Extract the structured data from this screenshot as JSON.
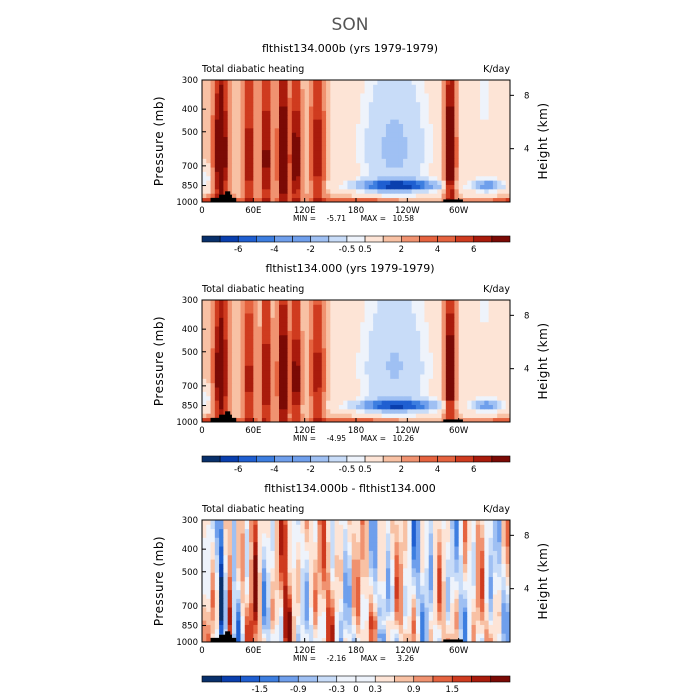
{
  "page_title": "SON",
  "colors": {
    "levels": [
      "#08306b",
      "#0a3fae",
      "#1f5fd1",
      "#3d7ee0",
      "#6f9fec",
      "#9fc0f3",
      "#c8dcf8",
      "#eef3fb",
      "#fde4d6",
      "#f8c1a4",
      "#f09270",
      "#e5633f",
      "#cf3b1f",
      "#a91b0c",
      "#7b0a05"
    ],
    "land": "#000000"
  },
  "chart_data": [
    {
      "type": "heatmap",
      "title": "flthist134.000b (yrs 1979-1979)",
      "left_label": "Total diabatic heating",
      "units": "K/day",
      "ylabel": "Pressure (mb)",
      "ylabel_right": "Height (km)",
      "x_ticks": [
        "0",
        "60E",
        "120E",
        "180",
        "120W",
        "60W"
      ],
      "x_tick_lon": [
        0,
        60,
        120,
        180,
        240,
        300
      ],
      "xlim": [
        0,
        360
      ],
      "y_ticks": [
        "300",
        "400",
        "500",
        "700",
        "850",
        "1000"
      ],
      "y_tick_p": [
        300,
        400,
        500,
        700,
        850,
        1000
      ],
      "ylim": [
        1000,
        300
      ],
      "right_ticks": [
        "8",
        "4"
      ],
      "right_tick_km": [
        8,
        4
      ],
      "min_label": "MIN =",
      "min_value": "-5.71",
      "max_label": "MAX =",
      "max_value": "10.58",
      "colorbar_levels": [
        -7,
        -6,
        -5,
        -4,
        -3,
        -2,
        -1,
        -0.5,
        0.5,
        1,
        2,
        3,
        4,
        5,
        6,
        7
      ],
      "colorbar_labels": [
        "-6",
        "-4",
        "-2",
        "-0.5",
        "0.5",
        "2",
        "4",
        "6"
      ],
      "colorbar_label_idx": [
        1,
        3,
        5,
        7,
        8,
        10,
        12,
        14
      ],
      "scale": 1.0,
      "noise": 0.0
    },
    {
      "type": "heatmap",
      "title": "flthist134.000 (yrs 1979-1979)",
      "left_label": "Total diabatic heating",
      "units": "K/day",
      "ylabel": "Pressure (mb)",
      "ylabel_right": "Height (km)",
      "x_ticks": [
        "0",
        "60E",
        "120E",
        "180",
        "120W",
        "60W"
      ],
      "x_tick_lon": [
        0,
        60,
        120,
        180,
        240,
        300
      ],
      "xlim": [
        0,
        360
      ],
      "y_ticks": [
        "300",
        "400",
        "500",
        "700",
        "850",
        "1000"
      ],
      "y_tick_p": [
        300,
        400,
        500,
        700,
        850,
        1000
      ],
      "ylim": [
        1000,
        300
      ],
      "right_ticks": [
        "8",
        "4"
      ],
      "right_tick_km": [
        8,
        4
      ],
      "min_label": "MIN =",
      "min_value": "-4.95",
      "max_label": "MAX =",
      "max_value": "10.26",
      "colorbar_levels": [
        -7,
        -6,
        -5,
        -4,
        -3,
        -2,
        -1,
        -0.5,
        0.5,
        1,
        2,
        3,
        4,
        5,
        6,
        7
      ],
      "colorbar_labels": [
        "-6",
        "-4",
        "-2",
        "-0.5",
        "0.5",
        "2",
        "4",
        "6"
      ],
      "colorbar_label_idx": [
        1,
        3,
        5,
        7,
        8,
        10,
        12,
        14
      ],
      "scale": 0.92,
      "noise": 0.0
    },
    {
      "type": "heatmap",
      "title": "flthist134.000b - flthist134.000",
      "left_label": "Total diabatic heating",
      "units": "K/day",
      "ylabel": "Pressure (mb)",
      "ylabel_right": "Height (km)",
      "x_ticks": [
        "0",
        "60E",
        "120E",
        "180",
        "120W",
        "60W"
      ],
      "x_tick_lon": [
        0,
        60,
        120,
        180,
        240,
        300
      ],
      "xlim": [
        0,
        360
      ],
      "y_ticks": [
        "300",
        "400",
        "500",
        "700",
        "850",
        "1000"
      ],
      "y_tick_p": [
        300,
        400,
        500,
        700,
        850,
        1000
      ],
      "ylim": [
        1000,
        300
      ],
      "right_ticks": [
        "8",
        "4"
      ],
      "right_tick_km": [
        8,
        4
      ],
      "min_label": "MIN =",
      "min_value": "-2.16",
      "max_label": "MAX =",
      "max_value": "3.26",
      "colorbar_levels": [
        -2.1,
        -1.8,
        -1.5,
        -1.2,
        -0.9,
        -0.6,
        -0.3,
        0,
        0.3,
        0.6,
        0.9,
        1.2,
        1.5,
        1.8,
        2.1
      ],
      "colorbar_labels": [
        "-1.5",
        "-0.9",
        "-0.3",
        "0",
        "0.3",
        "0.9",
        "1.5"
      ],
      "colorbar_label_idx": [
        2,
        4,
        6,
        7,
        8,
        10,
        12
      ],
      "scale": 1.0,
      "noise": 1.0
    }
  ]
}
